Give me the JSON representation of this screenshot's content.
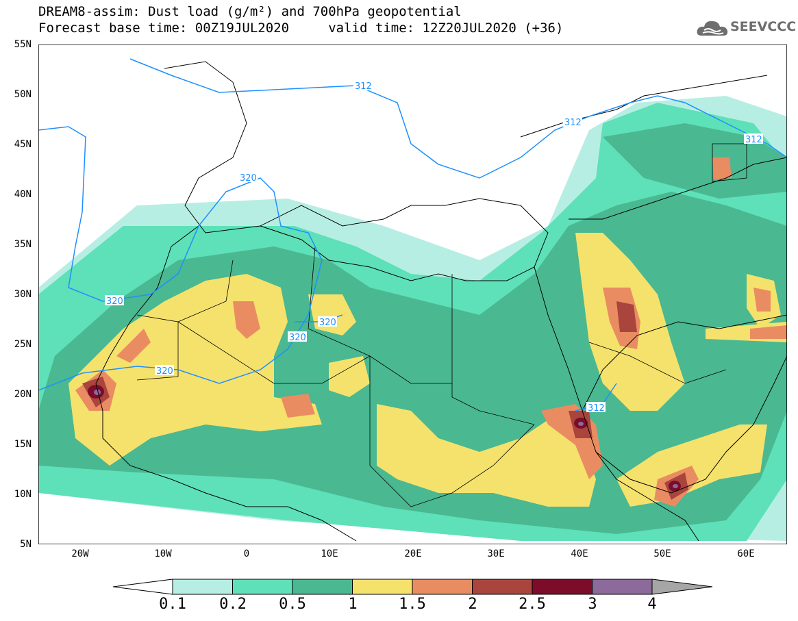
{
  "header": {
    "title_line1": "DREAM8-assim: Dust load (g/m²) and 700hPa geopotential",
    "title_line2": "Forecast base time: 00Z19JUL2020     valid time: 12Z20JUL2020 (+36)",
    "logo_text": "SEEVCCC"
  },
  "map": {
    "lat_labels": [
      "55N",
      "50N",
      "45N",
      "40N",
      "35N",
      "30N",
      "25N",
      "20N",
      "15N",
      "10N",
      "5N"
    ],
    "lon_labels": [
      "20W",
      "10W",
      "0",
      "10E",
      "20E",
      "30E",
      "40E",
      "50E",
      "60E"
    ],
    "contours": [
      {
        "label": "312"
      },
      {
        "label": "312"
      },
      {
        "label": "312"
      },
      {
        "label": "312"
      },
      {
        "label": "320"
      },
      {
        "label": "320"
      },
      {
        "label": "320"
      },
      {
        "label": "320"
      },
      {
        "label": "320"
      }
    ],
    "contour_color": "#1e90ff"
  },
  "colorbar": {
    "labels": [
      "0.1",
      "0.2",
      "0.5",
      "1",
      "1.5",
      "2",
      "2.5",
      "3",
      "4"
    ],
    "colors": [
      "#ffffff",
      "#b7eee4",
      "#5ee0b8",
      "#4ab891",
      "#f5e26c",
      "#ea8c62",
      "#a9453d",
      "#7c0c2a",
      "#8c6a9b",
      "#a6a6a6"
    ]
  }
}
